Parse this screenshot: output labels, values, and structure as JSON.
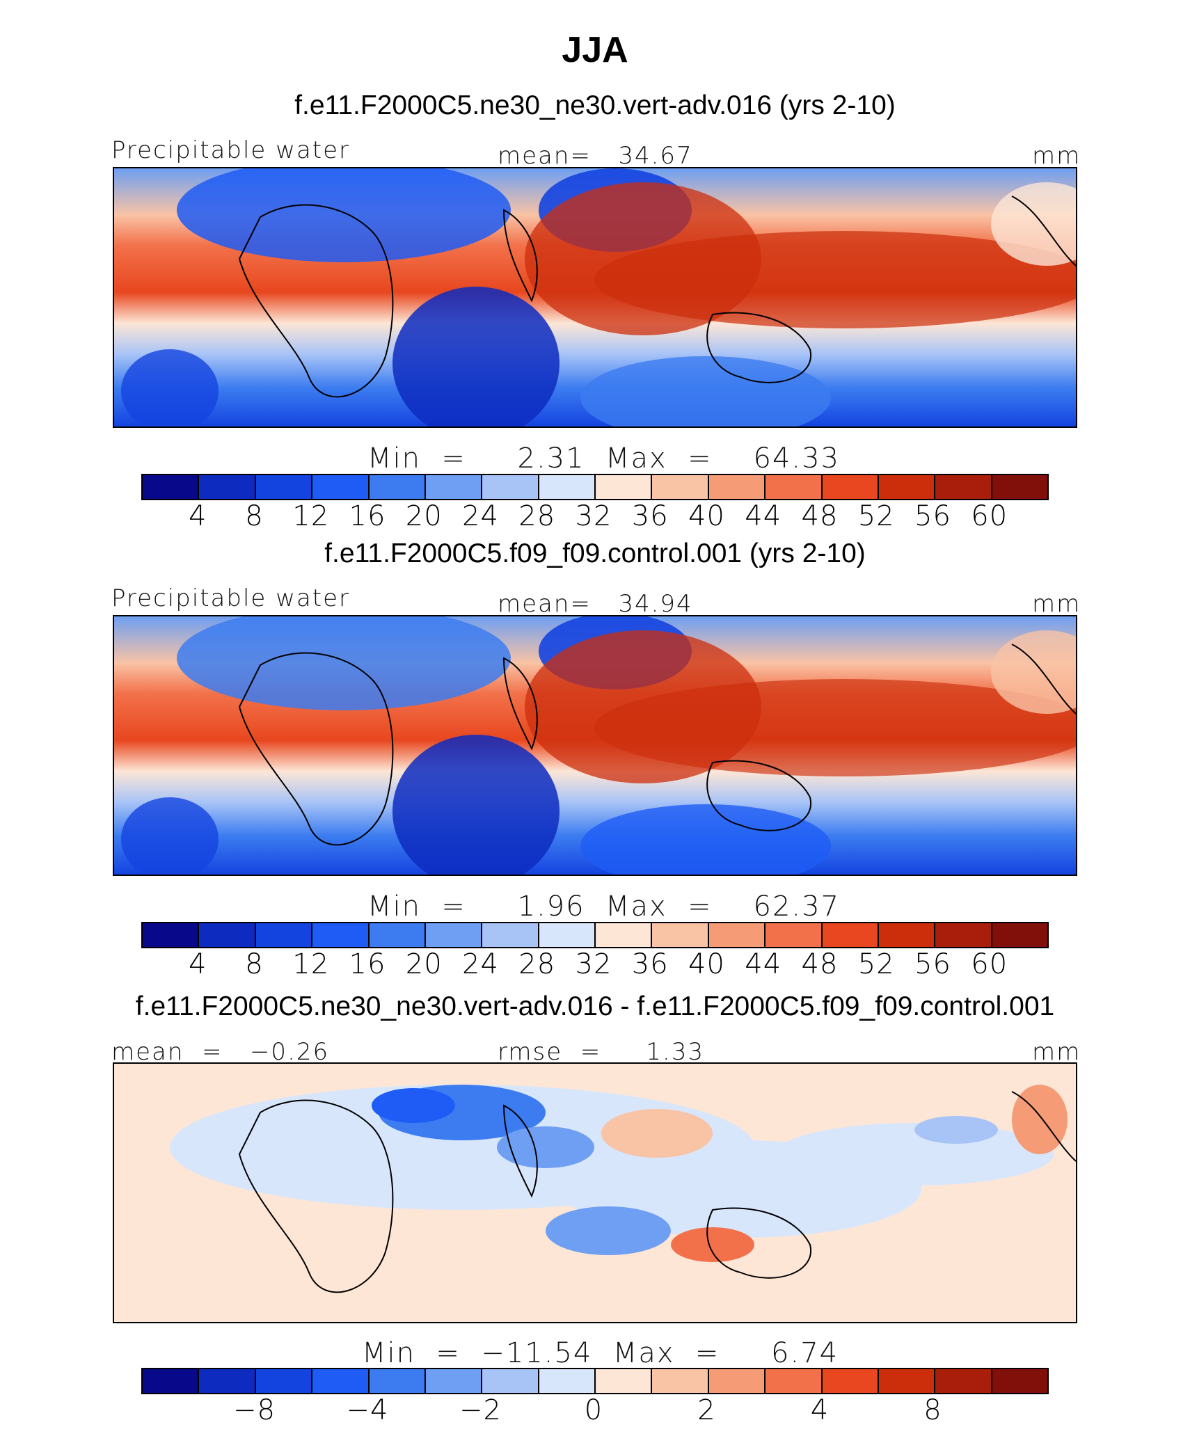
{
  "title": "JJA",
  "colors": [
    "#08088a",
    "#0d2cbf",
    "#1444e0",
    "#1e5cf5",
    "#3c7cf0",
    "#6e9ff2",
    "#a8c4f7",
    "#d8e6fb",
    "#fde6d6",
    "#f9c3a5",
    "#f59c77",
    "#f2714a",
    "#e8471f",
    "#cc2e0c",
    "#a81e0a",
    "#82100a"
  ],
  "panels": [
    {
      "id": "p1",
      "case_title": "f.e11.F2000C5.ne30_ne30.vert-adv.016 (yrs 2-10)",
      "left_label": "Precipitable water",
      "center_label": "mean=   34.67",
      "right_label": "mm",
      "minmax": "Min  =     2.31  Max  =    64.33",
      "tick_labels": [
        "4",
        "8",
        "12",
        "16",
        "20",
        "24",
        "28",
        "32",
        "36",
        "40",
        "44",
        "48",
        "52",
        "56",
        "60"
      ]
    },
    {
      "id": "p2",
      "case_title": "f.e11.F2000C5.f09_f09.control.001 (yrs 2-10)",
      "left_label": "Precipitable water",
      "center_label": "mean=   34.94",
      "right_label": "mm",
      "minmax": "Min  =     1.96  Max  =    62.37",
      "tick_labels": [
        "4",
        "8",
        "12",
        "16",
        "20",
        "24",
        "28",
        "32",
        "36",
        "40",
        "44",
        "48",
        "52",
        "56",
        "60"
      ]
    },
    {
      "id": "p3",
      "case_title": "f.e11.F2000C5.ne30_ne30.vert-adv.016 - f.e11.F2000C5.f09_f09.control.001",
      "left_label": "mean  =   −0.26",
      "center_label": "rmse  =     1.33",
      "right_label": "mm",
      "minmax": "Min  =  −11.54  Max  =     6.74",
      "tick_labels": [
        "−8",
        "−4",
        "−2",
        "0",
        "2",
        "4",
        "8"
      ]
    }
  ],
  "chart_data": [
    {
      "type": "heatmap",
      "title": "JJA",
      "subtitle": "f.e11.F2000C5.ne30_ne30.vert-adv.016 (yrs 2-10)",
      "variable": "Precipitable water",
      "units": "mm",
      "mean": 34.67,
      "min": 2.31,
      "max": 64.33,
      "contour_levels": [
        4,
        8,
        12,
        16,
        20,
        24,
        28,
        32,
        36,
        40,
        44,
        48,
        52,
        56,
        60
      ],
      "colormap": "blue-white-red, 16 bins"
    },
    {
      "type": "heatmap",
      "title": "JJA",
      "subtitle": "f.e11.F2000C5.f09_f09.control.001 (yrs 2-10)",
      "variable": "Precipitable water",
      "units": "mm",
      "mean": 34.94,
      "min": 1.96,
      "max": 62.37,
      "contour_levels": [
        4,
        8,
        12,
        16,
        20,
        24,
        28,
        32,
        36,
        40,
        44,
        48,
        52,
        56,
        60
      ],
      "colormap": "blue-white-red, 16 bins"
    },
    {
      "type": "heatmap",
      "title": "JJA",
      "subtitle": "f.e11.F2000C5.ne30_ne30.vert-adv.016 - f.e11.F2000C5.f09_f09.control.001",
      "units": "mm",
      "mean": -0.26,
      "rmse": 1.33,
      "min": -11.54,
      "max": 6.74,
      "contour_levels": [
        -8,
        -4,
        -2,
        0,
        2,
        4,
        8
      ],
      "colormap": "blue-white-red, 16 bins"
    }
  ]
}
